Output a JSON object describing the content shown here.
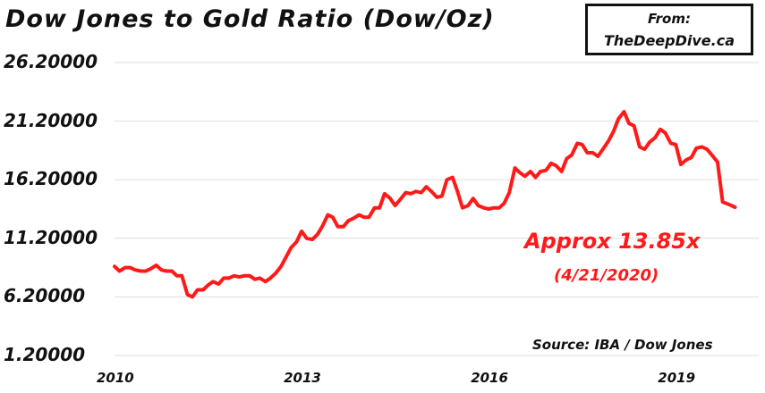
{
  "header": {
    "title": "Dow Jones to Gold Ratio (Dow/Oz)"
  },
  "source_box": {
    "from_label": "From:",
    "site": "TheDeepDive.ca"
  },
  "annotation": {
    "main": "Approx 13.85x",
    "date": "(4/21/2020)",
    "source": "Source: IBA / Dow Jones"
  },
  "colors": {
    "line": "#ff1a1a",
    "grid": "#dddddd",
    "text": "#111111"
  },
  "chart_data": {
    "type": "line",
    "title": "Dow Jones to Gold Ratio (Dow/Oz)",
    "xlabel": "",
    "ylabel": "",
    "ylim": [
      1.2,
      26.2
    ],
    "xlim": [
      2010.0,
      2020.33
    ],
    "grid": true,
    "y_ticks": [
      "26.20000",
      "21.20000",
      "16.20000",
      "11.20000",
      "6.20000",
      "1.20000"
    ],
    "y_tick_values": [
      26.2,
      21.2,
      16.2,
      11.2,
      6.2,
      1.2
    ],
    "x_ticks": [
      "2010",
      "2013",
      "2016",
      "2019"
    ],
    "x_tick_values": [
      2010,
      2013,
      2016,
      2019
    ],
    "series": [
      {
        "values": [
          [
            2010.0,
            8.8
          ],
          [
            2010.08,
            8.4
          ],
          [
            2010.17,
            8.7
          ],
          [
            2010.25,
            8.7
          ],
          [
            2010.33,
            8.5
          ],
          [
            2010.42,
            8.4
          ],
          [
            2010.5,
            8.4
          ],
          [
            2010.58,
            8.6
          ],
          [
            2010.67,
            8.9
          ],
          [
            2010.75,
            8.5
          ],
          [
            2010.83,
            8.4
          ],
          [
            2010.92,
            8.4
          ],
          [
            2011.0,
            8.0
          ],
          [
            2011.08,
            8.0
          ],
          [
            2011.17,
            6.4
          ],
          [
            2011.25,
            6.2
          ],
          [
            2011.33,
            6.8
          ],
          [
            2011.42,
            6.8
          ],
          [
            2011.5,
            7.2
          ],
          [
            2011.58,
            7.5
          ],
          [
            2011.67,
            7.3
          ],
          [
            2011.75,
            7.8
          ],
          [
            2011.83,
            7.8
          ],
          [
            2011.92,
            8.0
          ],
          [
            2012.0,
            7.9
          ],
          [
            2012.08,
            8.0
          ],
          [
            2012.17,
            8.0
          ],
          [
            2012.25,
            7.7
          ],
          [
            2012.33,
            7.8
          ],
          [
            2012.42,
            7.5
          ],
          [
            2012.5,
            7.8
          ],
          [
            2012.58,
            8.2
          ],
          [
            2012.67,
            8.8
          ],
          [
            2012.75,
            9.6
          ],
          [
            2012.83,
            10.4
          ],
          [
            2012.92,
            10.9
          ],
          [
            2013.0,
            11.8
          ],
          [
            2013.08,
            11.2
          ],
          [
            2013.17,
            11.1
          ],
          [
            2013.25,
            11.5
          ],
          [
            2013.33,
            12.2
          ],
          [
            2013.42,
            13.2
          ],
          [
            2013.5,
            13.0
          ],
          [
            2013.58,
            12.2
          ],
          [
            2013.67,
            12.2
          ],
          [
            2013.75,
            12.7
          ],
          [
            2013.83,
            12.9
          ],
          [
            2013.92,
            13.2
          ],
          [
            2014.0,
            13.0
          ],
          [
            2014.08,
            13.0
          ],
          [
            2014.17,
            13.8
          ],
          [
            2014.25,
            13.8
          ],
          [
            2014.33,
            15.0
          ],
          [
            2014.42,
            14.6
          ],
          [
            2014.5,
            14.0
          ],
          [
            2014.58,
            14.5
          ],
          [
            2014.67,
            15.1
          ],
          [
            2014.75,
            15.0
          ],
          [
            2014.83,
            15.2
          ],
          [
            2014.92,
            15.1
          ],
          [
            2015.0,
            15.6
          ],
          [
            2015.08,
            15.2
          ],
          [
            2015.17,
            14.7
          ],
          [
            2015.25,
            14.8
          ],
          [
            2015.33,
            16.2
          ],
          [
            2015.42,
            16.4
          ],
          [
            2015.5,
            15.2
          ],
          [
            2015.58,
            13.8
          ],
          [
            2015.67,
            14.0
          ],
          [
            2015.75,
            14.6
          ],
          [
            2015.83,
            14.0
          ],
          [
            2015.92,
            13.8
          ],
          [
            2016.0,
            13.7
          ],
          [
            2016.08,
            13.8
          ],
          [
            2016.17,
            13.8
          ],
          [
            2016.25,
            14.2
          ],
          [
            2016.33,
            15.1
          ],
          [
            2016.42,
            17.2
          ],
          [
            2016.5,
            16.8
          ],
          [
            2016.58,
            16.5
          ],
          [
            2016.67,
            16.9
          ],
          [
            2016.75,
            16.4
          ],
          [
            2016.83,
            16.9
          ],
          [
            2016.92,
            17.0
          ],
          [
            2017.0,
            17.6
          ],
          [
            2017.08,
            17.4
          ],
          [
            2017.17,
            16.9
          ],
          [
            2017.25,
            18.0
          ],
          [
            2017.33,
            18.3
          ],
          [
            2017.42,
            19.3
          ],
          [
            2017.5,
            19.2
          ],
          [
            2017.58,
            18.5
          ],
          [
            2017.67,
            18.5
          ],
          [
            2017.75,
            18.2
          ],
          [
            2017.83,
            18.8
          ],
          [
            2017.92,
            19.5
          ],
          [
            2018.0,
            20.3
          ],
          [
            2018.08,
            21.4
          ],
          [
            2018.17,
            22.0
          ],
          [
            2018.25,
            21.0
          ],
          [
            2018.33,
            20.8
          ],
          [
            2018.42,
            19.0
          ],
          [
            2018.5,
            18.8
          ],
          [
            2018.58,
            19.4
          ],
          [
            2018.67,
            19.8
          ],
          [
            2018.75,
            20.5
          ],
          [
            2018.83,
            20.2
          ],
          [
            2018.92,
            19.3
          ],
          [
            2019.0,
            19.2
          ],
          [
            2019.08,
            17.5
          ],
          [
            2019.17,
            17.9
          ],
          [
            2019.25,
            18.1
          ],
          [
            2019.33,
            18.9
          ],
          [
            2019.42,
            19.0
          ],
          [
            2019.5,
            18.8
          ],
          [
            2019.58,
            18.3
          ],
          [
            2019.67,
            17.7
          ],
          [
            2019.75,
            14.3
          ],
          [
            2019.85,
            14.1
          ],
          [
            2019.95,
            13.85
          ]
        ]
      }
    ]
  }
}
